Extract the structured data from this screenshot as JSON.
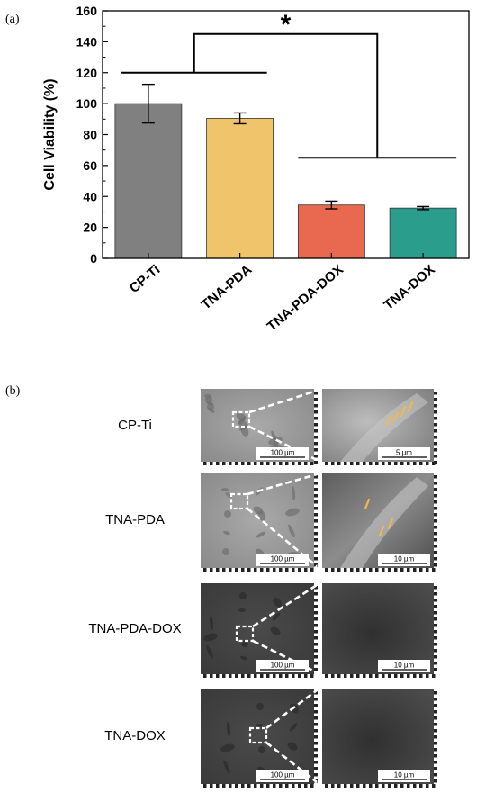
{
  "panel_a_label": "(a)",
  "panel_b_label": "(b)",
  "chart_data": {
    "type": "bar",
    "categories": [
      "CP-Ti",
      "TNA-PDA",
      "TNA-PDA-DOX",
      "TNA-DOX"
    ],
    "values": [
      100,
      90.5,
      34.5,
      32.5
    ],
    "errors": [
      12.5,
      3.5,
      2.5,
      1.0
    ],
    "colors": [
      "#808080",
      "#f0c46a",
      "#e8694f",
      "#2a9d8c"
    ],
    "ylabel": "Cell Viability (%)",
    "ylim": [
      0,
      160
    ],
    "yticks": [
      "0",
      "20",
      "40",
      "60",
      "80",
      "100",
      "120",
      "140",
      "160"
    ],
    "significance": "*"
  },
  "sem_panels": [
    {
      "label": "CP-Ti",
      "scale_low": "100 µm",
      "scale_high": "5 µm",
      "tone": "light"
    },
    {
      "label": "TNA-PDA",
      "scale_low": "100 µm",
      "scale_high": "10 µm",
      "tone": "light"
    },
    {
      "label": "TNA-PDA-DOX",
      "scale_low": "100 µm",
      "scale_high": "10 µm",
      "tone": "dark"
    },
    {
      "label": "TNA-DOX",
      "scale_low": "100 µm",
      "scale_high": "10 µm",
      "tone": "dark"
    }
  ]
}
